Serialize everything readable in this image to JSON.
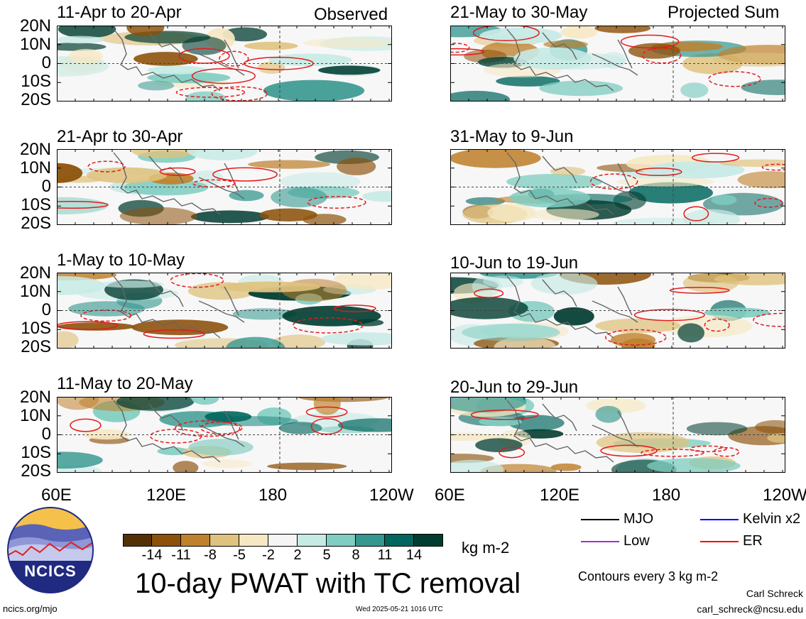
{
  "panels": [
    {
      "title": "11-Apr to 20-Apr",
      "header": "Observed"
    },
    {
      "title": "21-May to 30-May",
      "header": "Projected Sum"
    },
    {
      "title": "21-Apr to 30-Apr",
      "header": ""
    },
    {
      "title": "31-May to 9-Jun",
      "header": ""
    },
    {
      "title": "1-May to 10-May",
      "header": ""
    },
    {
      "title": "10-Jun to 19-Jun",
      "header": ""
    },
    {
      "title": "11-May to 20-May",
      "header": ""
    },
    {
      "title": "20-Jun to 29-Jun",
      "header": ""
    }
  ],
  "lat_labels": [
    "20N",
    "10N",
    "0",
    "10S",
    "20S"
  ],
  "lon_labels": [
    "60E",
    "120E",
    "180",
    "120W"
  ],
  "colorbar": {
    "colors": [
      "#543005",
      "#8c510a",
      "#bf812d",
      "#dfc27d",
      "#f6e8c3",
      "#f5f5f5",
      "#c7eae5",
      "#80cdc1",
      "#35978f",
      "#01665e",
      "#003c30"
    ],
    "labels": [
      "-14",
      "-11",
      "-8",
      "-5",
      "-2",
      "2",
      "5",
      "8",
      "11",
      "14"
    ],
    "units": "kg m-2"
  },
  "main_title": "10-day PWAT with TC removal",
  "legend": {
    "items": [
      {
        "label": "MJO",
        "color": "#000000"
      },
      {
        "label": "Kelvin x2",
        "color": "#0000ff"
      },
      {
        "label": "Low",
        "color": "#9933cc"
      },
      {
        "label": "ER",
        "color": "#ff0000"
      }
    ],
    "note": "Contours every 3 kg m-2"
  },
  "footer": {
    "left": "ncics.org/mjo",
    "center": "Wed 2025-05-21 1016 UTC",
    "author": "Carl Schreck",
    "email": "carl_schreck@ncsu.edu"
  },
  "logo": {
    "text": "NCICS"
  }
}
